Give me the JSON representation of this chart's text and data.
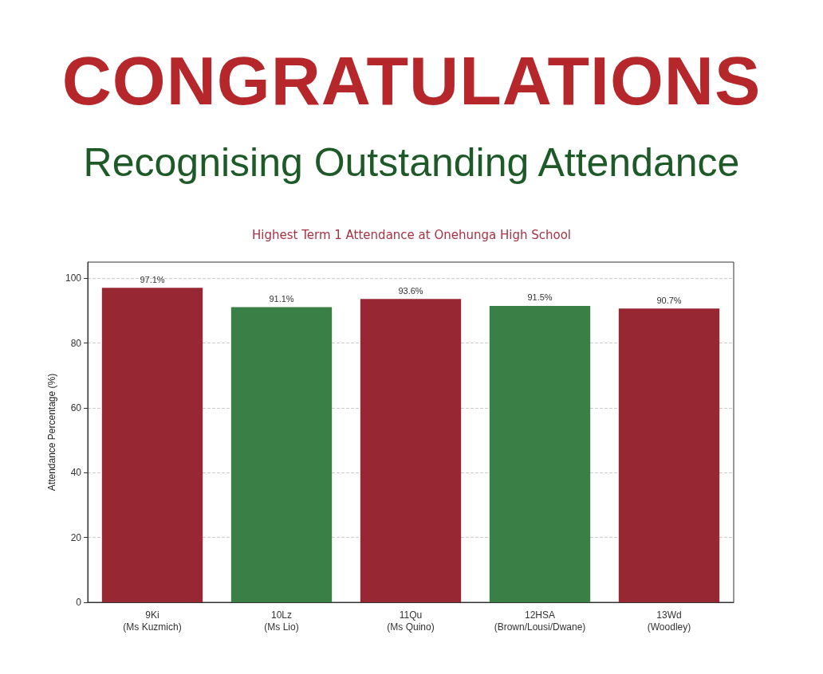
{
  "chart_data": {
    "type": "bar",
    "title": "CONGRATULATIONS",
    "subtitle": "Recognising Outstanding Attendance",
    "annotations": [
      "Highest Term 1 Attendance at Onehunga High School"
    ],
    "ylabel": "Attendance Percentage (%)",
    "categories": [
      "9Ki\n(Ms Kuzmich)",
      "10Lz\n(Ms Lio)",
      "11Qu\n(Ms Quino)",
      "12HSA\n(Brown/Lousi/Dwane)",
      "13Wd\n(Woodley)"
    ],
    "values": [
      97.1,
      91.1,
      93.6,
      91.5,
      90.7
    ],
    "colors": [
      "#972833",
      "#3a7f46",
      "#972833",
      "#3a7f46",
      "#972833"
    ],
    "value_labels": [
      "97.1%",
      "91.1%",
      "93.6%",
      "91.5%",
      "90.7%"
    ],
    "ylim": [
      0,
      105
    ],
    "yticks": [
      0,
      20,
      40,
      60,
      80,
      100
    ],
    "grid": "y"
  }
}
